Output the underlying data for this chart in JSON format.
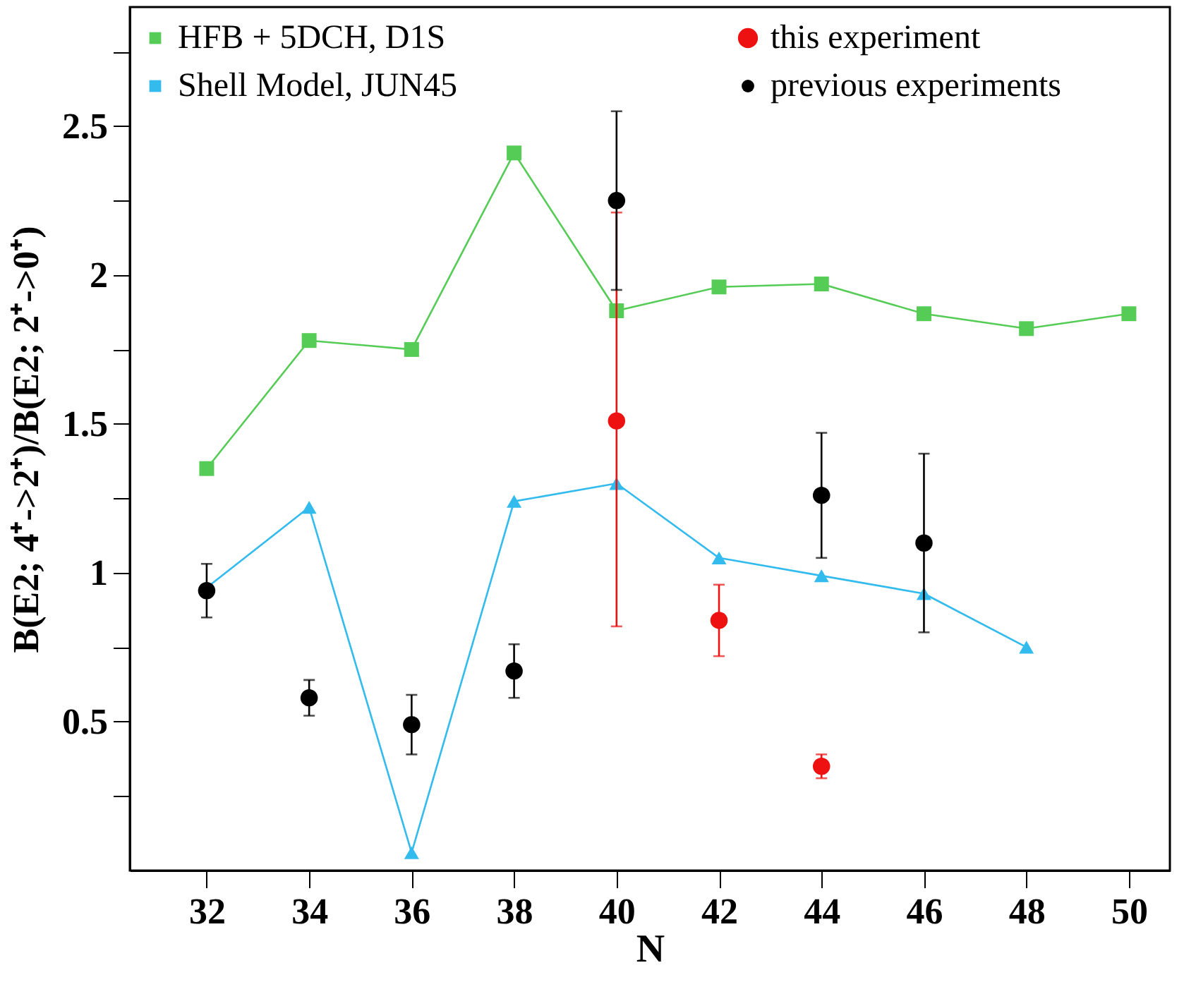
{
  "chart_data": {
    "type": "line",
    "xlabel": "N",
    "ylabel": "B(E2; 4⁺->2⁺)/B(E2; 2⁺->0⁺)",
    "xlim": [
      30.5,
      50.8
    ],
    "xticks": [
      32,
      34,
      36,
      38,
      40,
      42,
      44,
      46,
      48,
      50
    ],
    "ylim": [
      0,
      2.9
    ],
    "yticks": [
      {
        "value": 0.25,
        "label": null
      },
      0.5,
      {
        "value": 0.75,
        "label": null
      },
      1,
      {
        "value": 1.25,
        "label": null
      },
      1.5,
      {
        "value": 1.75,
        "label": null
      },
      2,
      {
        "value": 2.25,
        "label": null
      },
      2.5,
      {
        "value": 2.75,
        "label": null
      }
    ],
    "grid": false,
    "legend": "top",
    "series": [
      {
        "name": "HFB + 5DCH, D1S",
        "marker": "square",
        "color": "#55cc55",
        "x": [
          32,
          34,
          36,
          38,
          40,
          42,
          44,
          46,
          48,
          50
        ],
        "values": [
          1.35,
          1.78,
          1.75,
          2.41,
          1.88,
          1.96,
          1.97,
          1.87,
          1.82,
          1.87
        ]
      },
      {
        "name": "Shell Model, JUN45",
        "marker": "triangle",
        "color": "#33bbee",
        "x": [
          32,
          34,
          36,
          38,
          40,
          42,
          44,
          46,
          48
        ],
        "values": [
          0.95,
          1.22,
          0.06,
          1.24,
          1.3,
          1.05,
          0.99,
          0.93,
          0.75
        ]
      },
      {
        "name": "this experiment",
        "type": "scatter",
        "marker": "circle",
        "color": "#ee1111",
        "x": [
          40,
          42,
          44
        ],
        "values": [
          1.51,
          0.84,
          0.35
        ],
        "errors": [
          [
            0.82,
            2.21
          ],
          [
            0.72,
            0.96
          ],
          [
            0.31,
            0.39
          ]
        ]
      },
      {
        "name": "previous experiments",
        "type": "scatter",
        "marker": "circle",
        "color": "#000000",
        "x": [
          32,
          34,
          36,
          38,
          40,
          44,
          46
        ],
        "values": [
          0.94,
          0.58,
          0.49,
          0.67,
          2.25,
          1.26,
          1.1
        ],
        "errors": [
          [
            0.85,
            1.03
          ],
          [
            0.52,
            0.64
          ],
          [
            0.39,
            0.59
          ],
          [
            0.58,
            0.76
          ],
          [
            1.95,
            2.55
          ],
          [
            1.05,
            1.47
          ],
          [
            0.8,
            1.4
          ]
        ]
      }
    ]
  }
}
